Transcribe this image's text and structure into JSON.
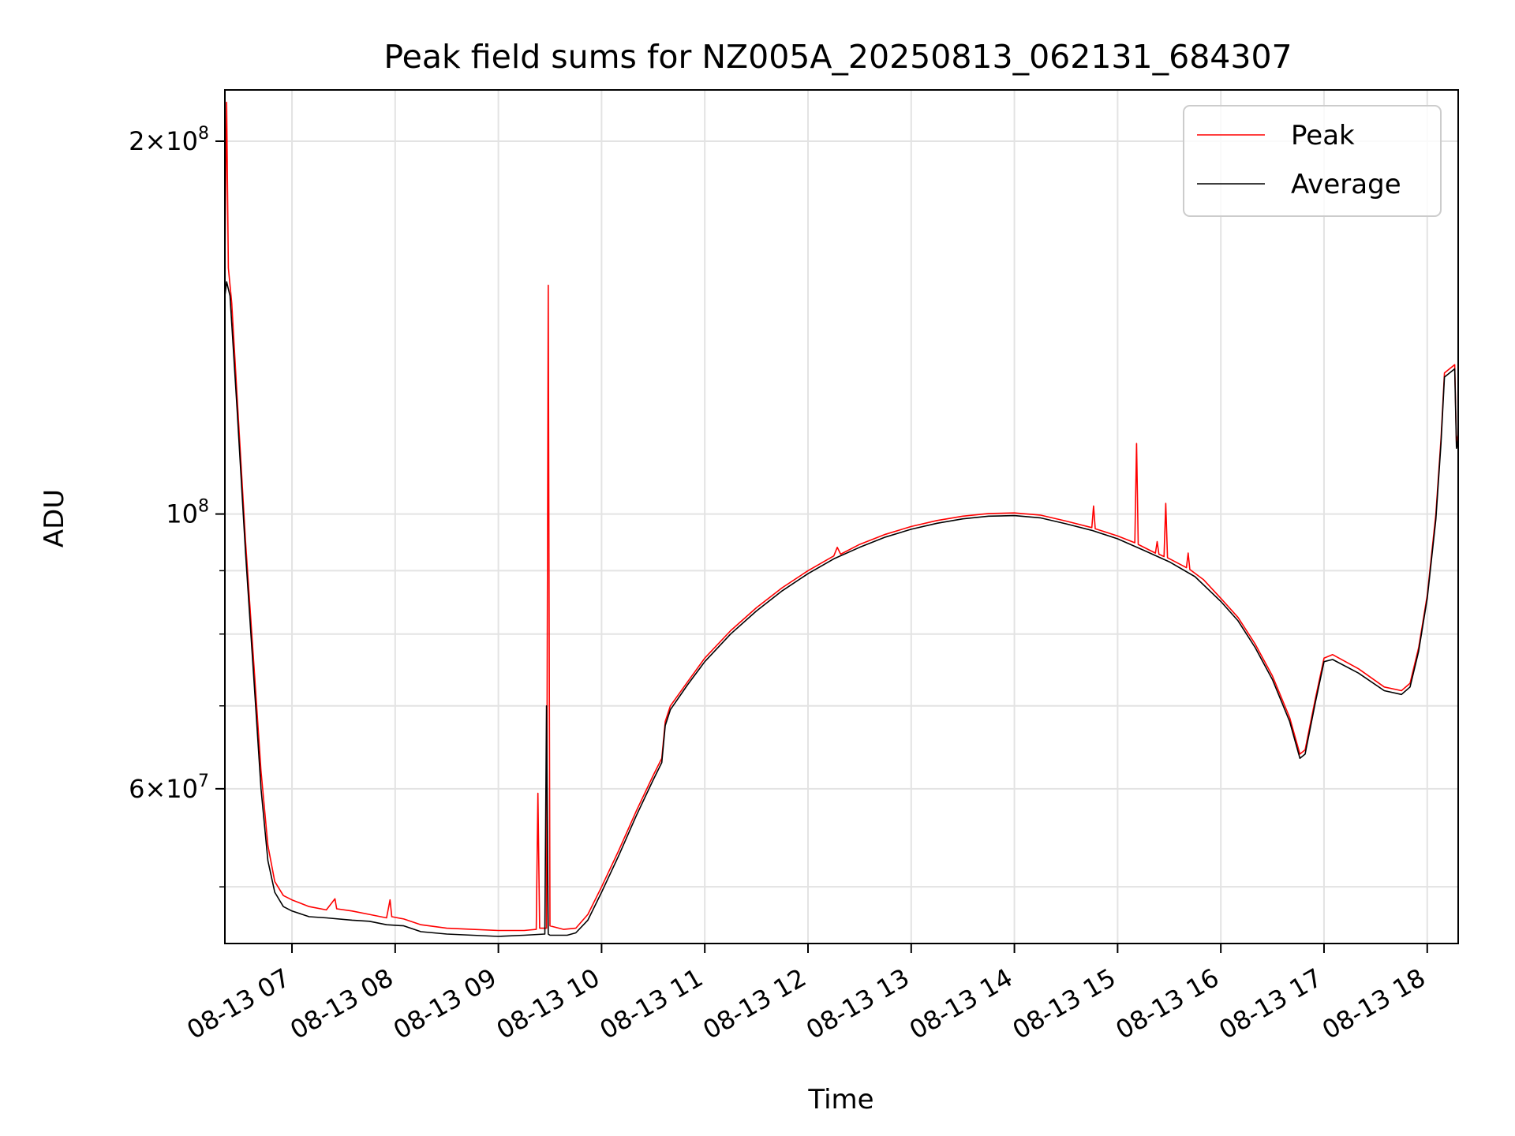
{
  "chart_data": {
    "type": "line",
    "title": "Peak field sums for NZ005A_20250813_062131_684307",
    "xlabel": "Time",
    "ylabel": "ADU",
    "yscale": "log",
    "ylim": [
      45000000,
      220000000
    ],
    "xlim": [
      "2025-08-13 06:21",
      "2025-08-13 18:18"
    ],
    "grid": true,
    "legend_position": "top-right",
    "x_ticks": [
      {
        "x": "2025-08-13 07:00",
        "label": "08-13 07"
      },
      {
        "x": "2025-08-13 08:00",
        "label": "08-13 08"
      },
      {
        "x": "2025-08-13 09:00",
        "label": "08-13 09"
      },
      {
        "x": "2025-08-13 10:00",
        "label": "08-13 10"
      },
      {
        "x": "2025-08-13 11:00",
        "label": "08-13 11"
      },
      {
        "x": "2025-08-13 12:00",
        "label": "08-13 12"
      },
      {
        "x": "2025-08-13 13:00",
        "label": "08-13 13"
      },
      {
        "x": "2025-08-13 14:00",
        "label": "08-13 14"
      },
      {
        "x": "2025-08-13 15:00",
        "label": "08-13 15"
      },
      {
        "x": "2025-08-13 16:00",
        "label": "08-13 16"
      },
      {
        "x": "2025-08-13 17:00",
        "label": "08-13 17"
      },
      {
        "x": "2025-08-13 18:00",
        "label": "08-13 18"
      }
    ],
    "y_ticks_major": [
      {
        "value": 60000000,
        "base": "6×10",
        "exp": "7"
      },
      {
        "value": 100000000,
        "base": "10",
        "exp": "8"
      },
      {
        "value": 200000000,
        "base": "2×10",
        "exp": "8"
      }
    ],
    "y_ticks_minor": [
      50000000,
      70000000,
      80000000,
      90000000
    ],
    "series": [
      {
        "name": "Peak",
        "color": "#ff0000",
        "points": [
          [
            "2025-08-13 06:21",
            160000000
          ],
          [
            "2025-08-13 06:22",
            215000000
          ],
          [
            "2025-08-13 06:23",
            158000000
          ],
          [
            "2025-08-13 06:25",
            148000000
          ],
          [
            "2025-08-13 06:28",
            125000000
          ],
          [
            "2025-08-13 06:33",
            95000000
          ],
          [
            "2025-08-13 06:38",
            75000000
          ],
          [
            "2025-08-13 06:42",
            62000000
          ],
          [
            "2025-08-13 06:46",
            54000000
          ],
          [
            "2025-08-13 06:50",
            50500000
          ],
          [
            "2025-08-13 06:55",
            49200000
          ],
          [
            "2025-08-13 07:00",
            48800000
          ],
          [
            "2025-08-13 07:10",
            48200000
          ],
          [
            "2025-08-13 07:20",
            47900000
          ],
          [
            "2025-08-13 07:25",
            48900000
          ],
          [
            "2025-08-13 07:26",
            48000000
          ],
          [
            "2025-08-13 07:35",
            47800000
          ],
          [
            "2025-08-13 07:45",
            47500000
          ],
          [
            "2025-08-13 07:55",
            47200000
          ],
          [
            "2025-08-13 07:57",
            48800000
          ],
          [
            "2025-08-13 07:58",
            47300000
          ],
          [
            "2025-08-13 08:05",
            47100000
          ],
          [
            "2025-08-13 08:15",
            46600000
          ],
          [
            "2025-08-13 08:30",
            46300000
          ],
          [
            "2025-08-13 08:45",
            46200000
          ],
          [
            "2025-08-13 09:00",
            46100000
          ],
          [
            "2025-08-13 09:15",
            46100000
          ],
          [
            "2025-08-13 09:22",
            46200000
          ],
          [
            "2025-08-13 09:23",
            59500000
          ],
          [
            "2025-08-13 09:24",
            46300000
          ],
          [
            "2025-08-13 09:28",
            46300000
          ],
          [
            "2025-08-13 09:29",
            153000000
          ],
          [
            "2025-08-13 09:30",
            46500000
          ],
          [
            "2025-08-13 09:38",
            46200000
          ],
          [
            "2025-08-13 09:45",
            46300000
          ],
          [
            "2025-08-13 09:52",
            47500000
          ],
          [
            "2025-08-13 10:00",
            50000000
          ],
          [
            "2025-08-13 10:10",
            53500000
          ],
          [
            "2025-08-13 10:20",
            57500000
          ],
          [
            "2025-08-13 10:30",
            61500000
          ],
          [
            "2025-08-13 10:35",
            63500000
          ],
          [
            "2025-08-13 10:37",
            68000000
          ],
          [
            "2025-08-13 10:40",
            70000000
          ],
          [
            "2025-08-13 10:50",
            73200000
          ],
          [
            "2025-08-13 11:00",
            76500000
          ],
          [
            "2025-08-13 11:15",
            80500000
          ],
          [
            "2025-08-13 11:30",
            84000000
          ],
          [
            "2025-08-13 11:45",
            87200000
          ],
          [
            "2025-08-13 12:00",
            90000000
          ],
          [
            "2025-08-13 12:15",
            92500000
          ],
          [
            "2025-08-13 12:17",
            94000000
          ],
          [
            "2025-08-13 12:19",
            92800000
          ],
          [
            "2025-08-13 12:30",
            94500000
          ],
          [
            "2025-08-13 12:45",
            96300000
          ],
          [
            "2025-08-13 13:00",
            97700000
          ],
          [
            "2025-08-13 13:15",
            98800000
          ],
          [
            "2025-08-13 13:30",
            99600000
          ],
          [
            "2025-08-13 13:45",
            100100000
          ],
          [
            "2025-08-13 14:00",
            100200000
          ],
          [
            "2025-08-13 14:15",
            99800000
          ],
          [
            "2025-08-13 14:30",
            98700000
          ],
          [
            "2025-08-13 14:45",
            97500000
          ],
          [
            "2025-08-13 14:46",
            101500000
          ],
          [
            "2025-08-13 14:47",
            97300000
          ],
          [
            "2025-08-13 15:00",
            96000000
          ],
          [
            "2025-08-13 15:10",
            94800000
          ],
          [
            "2025-08-13 15:11",
            114000000
          ],
          [
            "2025-08-13 15:12",
            94500000
          ],
          [
            "2025-08-13 15:22",
            93000000
          ],
          [
            "2025-08-13 15:23",
            95000000
          ],
          [
            "2025-08-13 15:24",
            92800000
          ],
          [
            "2025-08-13 15:27",
            92400000
          ],
          [
            "2025-08-13 15:28",
            102000000
          ],
          [
            "2025-08-13 15:29",
            92200000
          ],
          [
            "2025-08-13 15:40",
            90500000
          ],
          [
            "2025-08-13 15:41",
            93000000
          ],
          [
            "2025-08-13 15:42",
            90200000
          ],
          [
            "2025-08-13 15:50",
            88500000
          ],
          [
            "2025-08-13 16:00",
            85500000
          ],
          [
            "2025-08-13 16:10",
            82500000
          ],
          [
            "2025-08-13 16:20",
            78500000
          ],
          [
            "2025-08-13 16:30",
            74000000
          ],
          [
            "2025-08-13 16:40",
            68500000
          ],
          [
            "2025-08-13 16:46",
            64000000
          ],
          [
            "2025-08-13 16:49",
            64500000
          ],
          [
            "2025-08-13 16:55",
            71000000
          ],
          [
            "2025-08-13 17:00",
            76500000
          ],
          [
            "2025-08-13 17:05",
            77000000
          ],
          [
            "2025-08-13 17:20",
            75000000
          ],
          [
            "2025-08-13 17:35",
            72500000
          ],
          [
            "2025-08-13 17:45",
            72000000
          ],
          [
            "2025-08-13 17:50",
            73000000
          ],
          [
            "2025-08-13 17:55",
            78000000
          ],
          [
            "2025-08-13 18:00",
            86000000
          ],
          [
            "2025-08-13 18:05",
            100000000
          ],
          [
            "2025-08-13 18:08",
            115000000
          ],
          [
            "2025-08-13 18:10",
            130000000
          ],
          [
            "2025-08-13 18:13",
            131000000
          ],
          [
            "2025-08-13 18:16",
            132000000
          ],
          [
            "2025-08-13 18:17",
            114000000
          ],
          [
            "2025-08-13 18:18",
            116000000
          ]
        ]
      },
      {
        "name": "Average",
        "color": "#000000",
        "points": [
          [
            "2025-08-13 06:21",
            150000000
          ],
          [
            "2025-08-13 06:22",
            154000000
          ],
          [
            "2025-08-13 06:24",
            150000000
          ],
          [
            "2025-08-13 06:28",
            122000000
          ],
          [
            "2025-08-13 06:33",
            93000000
          ],
          [
            "2025-08-13 06:38",
            73000000
          ],
          [
            "2025-08-13 06:42",
            60000000
          ],
          [
            "2025-08-13 06:46",
            52500000
          ],
          [
            "2025-08-13 06:50",
            49500000
          ],
          [
            "2025-08-13 06:55",
            48200000
          ],
          [
            "2025-08-13 07:00",
            47800000
          ],
          [
            "2025-08-13 07:10",
            47300000
          ],
          [
            "2025-08-13 07:20",
            47200000
          ],
          [
            "2025-08-13 07:35",
            47000000
          ],
          [
            "2025-08-13 07:45",
            46900000
          ],
          [
            "2025-08-13 07:55",
            46600000
          ],
          [
            "2025-08-13 08:05",
            46500000
          ],
          [
            "2025-08-13 08:15",
            46000000
          ],
          [
            "2025-08-13 08:30",
            45800000
          ],
          [
            "2025-08-13 08:45",
            45700000
          ],
          [
            "2025-08-13 09:00",
            45600000
          ],
          [
            "2025-08-13 09:15",
            45700000
          ],
          [
            "2025-08-13 09:27",
            45800000
          ],
          [
            "2025-08-13 09:28",
            70000000
          ],
          [
            "2025-08-13 09:29",
            45800000
          ],
          [
            "2025-08-13 09:30",
            45700000
          ],
          [
            "2025-08-13 09:40",
            45700000
          ],
          [
            "2025-08-13 09:45",
            45900000
          ],
          [
            "2025-08-13 09:52",
            47000000
          ],
          [
            "2025-08-13 10:00",
            49500000
          ],
          [
            "2025-08-13 10:10",
            53000000
          ],
          [
            "2025-08-13 10:20",
            57000000
          ],
          [
            "2025-08-13 10:30",
            61000000
          ],
          [
            "2025-08-13 10:35",
            63000000
          ],
          [
            "2025-08-13 10:37",
            67500000
          ],
          [
            "2025-08-13 10:40",
            69500000
          ],
          [
            "2025-08-13 10:50",
            72800000
          ],
          [
            "2025-08-13 11:00",
            76000000
          ],
          [
            "2025-08-13 11:15",
            80000000
          ],
          [
            "2025-08-13 11:30",
            83500000
          ],
          [
            "2025-08-13 11:45",
            86700000
          ],
          [
            "2025-08-13 12:00",
            89500000
          ],
          [
            "2025-08-13 12:15",
            92000000
          ],
          [
            "2025-08-13 12:30",
            94000000
          ],
          [
            "2025-08-13 12:45",
            95800000
          ],
          [
            "2025-08-13 13:00",
            97200000
          ],
          [
            "2025-08-13 13:15",
            98300000
          ],
          [
            "2025-08-13 13:30",
            99100000
          ],
          [
            "2025-08-13 13:45",
            99600000
          ],
          [
            "2025-08-13 14:00",
            99700000
          ],
          [
            "2025-08-13 14:15",
            99300000
          ],
          [
            "2025-08-13 14:30",
            98200000
          ],
          [
            "2025-08-13 14:45",
            97000000
          ],
          [
            "2025-08-13 15:00",
            95500000
          ],
          [
            "2025-08-13 15:15",
            93500000
          ],
          [
            "2025-08-13 15:30",
            91500000
          ],
          [
            "2025-08-13 15:45",
            89000000
          ],
          [
            "2025-08-13 16:00",
            85000000
          ],
          [
            "2025-08-13 16:10",
            82000000
          ],
          [
            "2025-08-13 16:20",
            78000000
          ],
          [
            "2025-08-13 16:30",
            73500000
          ],
          [
            "2025-08-13 16:40",
            68000000
          ],
          [
            "2025-08-13 16:46",
            63500000
          ],
          [
            "2025-08-13 16:49",
            64000000
          ],
          [
            "2025-08-13 16:55",
            70500000
          ],
          [
            "2025-08-13 17:00",
            76000000
          ],
          [
            "2025-08-13 17:05",
            76300000
          ],
          [
            "2025-08-13 17:20",
            74400000
          ],
          [
            "2025-08-13 17:35",
            72000000
          ],
          [
            "2025-08-13 17:45",
            71500000
          ],
          [
            "2025-08-13 17:50",
            72500000
          ],
          [
            "2025-08-13 17:55",
            77500000
          ],
          [
            "2025-08-13 18:00",
            85500000
          ],
          [
            "2025-08-13 18:05",
            99000000
          ],
          [
            "2025-08-13 18:08",
            114000000
          ],
          [
            "2025-08-13 18:10",
            129000000
          ],
          [
            "2025-08-13 18:13",
            130000000
          ],
          [
            "2025-08-13 18:16",
            131000000
          ],
          [
            "2025-08-13 18:17",
            113000000
          ],
          [
            "2025-08-13 18:18",
            115000000
          ]
        ]
      }
    ]
  }
}
